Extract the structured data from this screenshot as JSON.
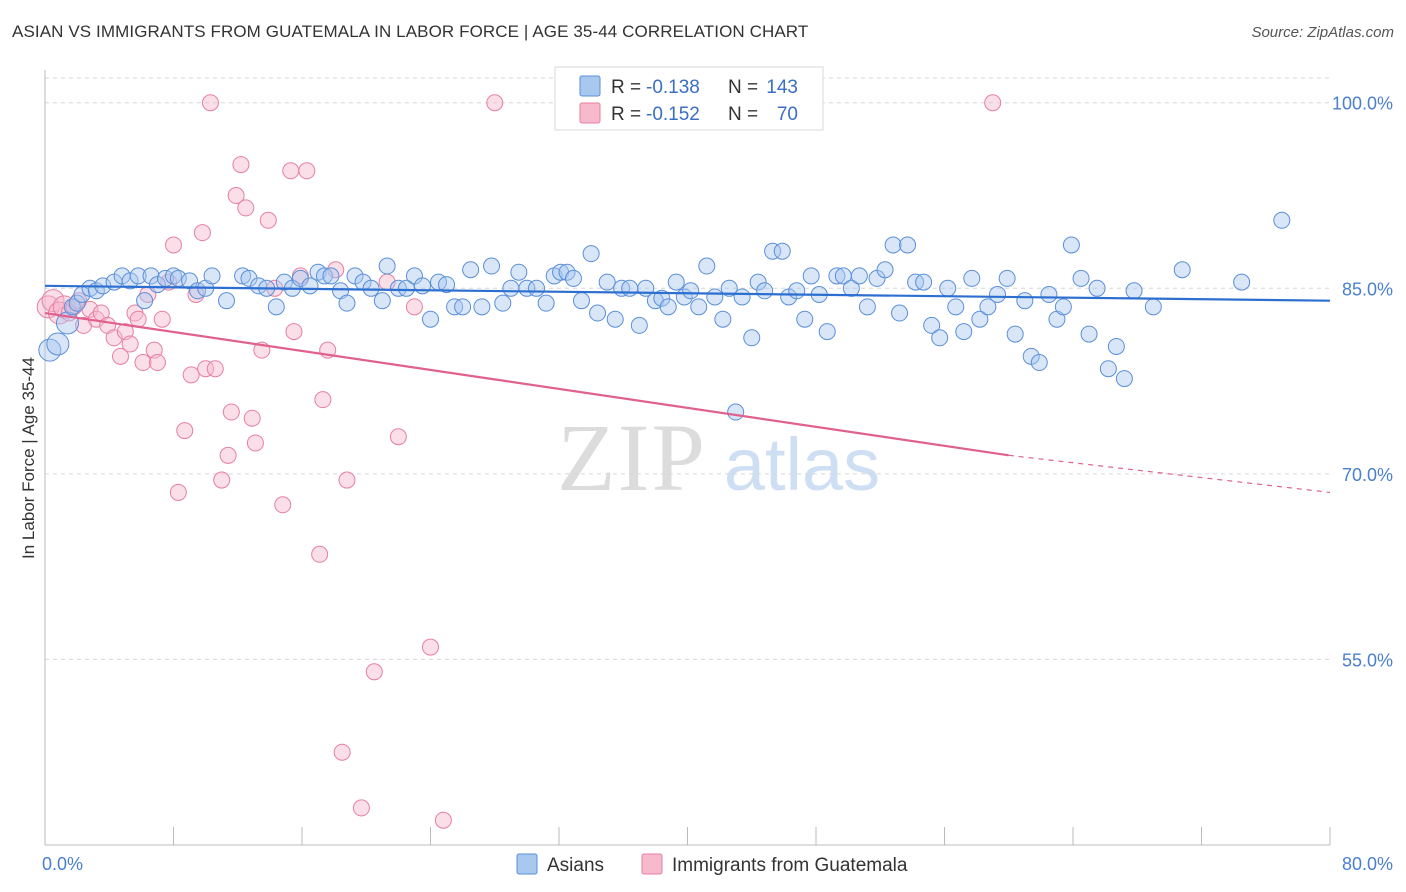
{
  "title": "ASIAN VS IMMIGRANTS FROM GUATEMALA IN LABOR FORCE | AGE 35-44 CORRELATION CHART",
  "source": "Source: ZipAtlas.com",
  "watermark": {
    "zip": "ZIP",
    "atlas": "atlas"
  },
  "legend_top": [
    {
      "r_label": "R =",
      "r_value": "-0.138",
      "n_label": "N =",
      "n_value": "143",
      "color": "#a9c8f0",
      "stroke": "#5b8fd8"
    },
    {
      "r_label": "R =",
      "r_value": "-0.152",
      "n_label": "N =",
      "n_value": "70",
      "color": "#f7b9cc",
      "stroke": "#e77fa2"
    }
  ],
  "legend_bottom": [
    {
      "label": "Asians",
      "color": "#a9c8f0",
      "stroke": "#5b8fd8"
    },
    {
      "label": "Immigrants from Guatemala",
      "color": "#f7b9cc",
      "stroke": "#e77fa2"
    }
  ],
  "chart_data": {
    "type": "scatter",
    "title": "ASIAN VS IMMIGRANTS FROM GUATEMALA IN LABOR FORCE | AGE 35-44 CORRELATION CHART",
    "xlabel": "",
    "ylabel": "In Labor Force | Age 35-44",
    "xlim": [
      0,
      80
    ],
    "ylim": [
      40,
      102
    ],
    "x_tick_labels": [
      "0.0%",
      "80.0%"
    ],
    "y_ticks": [
      55,
      70,
      85,
      100
    ],
    "y_tick_labels": [
      "55.0%",
      "70.0%",
      "85.0%",
      "100.0%"
    ],
    "series": [
      {
        "name": "Asians",
        "color": "#a9c8f0",
        "stroke": "#5b8fd8",
        "line_color": "#2d6fd0",
        "trend": {
          "x": [
            0,
            80
          ],
          "y": [
            85.2,
            84.0
          ]
        },
        "points": [
          [
            0.3,
            80.0
          ],
          [
            0.8,
            80.5
          ],
          [
            1.4,
            82.2
          ],
          [
            1.7,
            83.5
          ],
          [
            2.0,
            83.8
          ],
          [
            2.3,
            84.5
          ],
          [
            2.8,
            85.0
          ],
          [
            3.2,
            84.8
          ],
          [
            3.6,
            85.2
          ],
          [
            4.3,
            85.5
          ],
          [
            4.8,
            86.0
          ],
          [
            5.3,
            85.6
          ],
          [
            5.8,
            86.0
          ],
          [
            6.2,
            84.0
          ],
          [
            6.6,
            86.0
          ],
          [
            7.0,
            85.3
          ],
          [
            7.5,
            85.8
          ],
          [
            8.0,
            86.0
          ],
          [
            8.3,
            85.8
          ],
          [
            9.0,
            85.6
          ],
          [
            9.5,
            84.8
          ],
          [
            10.0,
            85.0
          ],
          [
            10.4,
            86.0
          ],
          [
            11.3,
            84.0
          ],
          [
            12.3,
            86.0
          ],
          [
            12.7,
            85.8
          ],
          [
            13.3,
            85.2
          ],
          [
            13.8,
            85.0
          ],
          [
            14.4,
            83.5
          ],
          [
            14.9,
            85.5
          ],
          [
            15.4,
            85.0
          ],
          [
            15.9,
            85.8
          ],
          [
            16.5,
            85.2
          ],
          [
            17.0,
            86.3
          ],
          [
            17.4,
            86.0
          ],
          [
            17.8,
            86.0
          ],
          [
            18.4,
            84.8
          ],
          [
            18.8,
            83.8
          ],
          [
            19.3,
            86.0
          ],
          [
            19.8,
            85.5
          ],
          [
            20.3,
            85.0
          ],
          [
            21.0,
            84.0
          ],
          [
            21.3,
            86.8
          ],
          [
            22.0,
            85.0
          ],
          [
            22.5,
            85.0
          ],
          [
            23.0,
            86.0
          ],
          [
            23.5,
            85.2
          ],
          [
            24.0,
            82.5
          ],
          [
            24.5,
            85.5
          ],
          [
            25.0,
            85.3
          ],
          [
            25.5,
            83.5
          ],
          [
            26.0,
            83.5
          ],
          [
            26.5,
            86.5
          ],
          [
            27.2,
            83.5
          ],
          [
            27.8,
            86.8
          ],
          [
            28.5,
            83.8
          ],
          [
            29.0,
            85.0
          ],
          [
            29.5,
            86.3
          ],
          [
            30.0,
            85.0
          ],
          [
            30.6,
            85.0
          ],
          [
            31.2,
            83.8
          ],
          [
            31.7,
            86.0
          ],
          [
            32.1,
            86.3
          ],
          [
            32.5,
            86.3
          ],
          [
            32.9,
            85.8
          ],
          [
            33.4,
            84.0
          ],
          [
            34.0,
            87.8
          ],
          [
            34.4,
            83.0
          ],
          [
            35.0,
            85.5
          ],
          [
            35.5,
            82.5
          ],
          [
            35.9,
            85.0
          ],
          [
            36.4,
            85.0
          ],
          [
            37.0,
            82.0
          ],
          [
            37.4,
            85.0
          ],
          [
            38.0,
            84.0
          ],
          [
            38.4,
            84.2
          ],
          [
            38.8,
            83.5
          ],
          [
            39.3,
            85.5
          ],
          [
            39.8,
            84.3
          ],
          [
            40.2,
            84.8
          ],
          [
            40.7,
            83.5
          ],
          [
            41.2,
            86.8
          ],
          [
            41.7,
            84.3
          ],
          [
            42.2,
            82.5
          ],
          [
            42.6,
            85.0
          ],
          [
            43.0,
            75.0
          ],
          [
            43.4,
            84.3
          ],
          [
            44.0,
            81.0
          ],
          [
            44.4,
            85.5
          ],
          [
            44.8,
            84.8
          ],
          [
            45.3,
            88.0
          ],
          [
            45.9,
            88.0
          ],
          [
            46.3,
            84.3
          ],
          [
            46.8,
            84.8
          ],
          [
            47.3,
            82.5
          ],
          [
            47.7,
            86.0
          ],
          [
            48.2,
            84.5
          ],
          [
            48.7,
            81.5
          ],
          [
            49.3,
            86.0
          ],
          [
            49.7,
            86.0
          ],
          [
            50.2,
            85.0
          ],
          [
            50.7,
            86.0
          ],
          [
            51.2,
            83.5
          ],
          [
            51.8,
            85.8
          ],
          [
            52.3,
            86.5
          ],
          [
            52.8,
            88.5
          ],
          [
            53.2,
            83.0
          ],
          [
            53.7,
            88.5
          ],
          [
            54.2,
            85.5
          ],
          [
            54.7,
            85.5
          ],
          [
            55.2,
            82.0
          ],
          [
            55.7,
            81.0
          ],
          [
            56.2,
            85.0
          ],
          [
            56.7,
            83.5
          ],
          [
            57.2,
            81.5
          ],
          [
            57.7,
            85.8
          ],
          [
            58.2,
            82.5
          ],
          [
            58.7,
            83.5
          ],
          [
            59.3,
            84.5
          ],
          [
            59.9,
            85.8
          ],
          [
            60.4,
            81.3
          ],
          [
            61.0,
            84.0
          ],
          [
            61.4,
            79.5
          ],
          [
            61.9,
            79.0
          ],
          [
            62.5,
            84.5
          ],
          [
            63.0,
            82.5
          ],
          [
            63.4,
            83.5
          ],
          [
            63.9,
            88.5
          ],
          [
            64.5,
            85.8
          ],
          [
            65.0,
            81.3
          ],
          [
            65.5,
            85.0
          ],
          [
            66.2,
            78.5
          ],
          [
            66.7,
            80.3
          ],
          [
            67.2,
            77.7
          ],
          [
            67.8,
            84.8
          ],
          [
            69.0,
            83.5
          ],
          [
            70.8,
            86.5
          ],
          [
            74.5,
            85.5
          ],
          [
            77.0,
            90.5
          ]
        ]
      },
      {
        "name": "Immigrants from Guatemala",
        "color": "#f7b9cc",
        "stroke": "#e77fa2",
        "line_color": "#e0608e",
        "trend": {
          "x": [
            0,
            60
          ],
          "y": [
            83.0,
            71.5
          ]
        },
        "trend_dashed": {
          "x": [
            60,
            80
          ],
          "y": [
            71.5,
            68.5
          ]
        },
        "points": [
          [
            0.2,
            83.5
          ],
          [
            0.5,
            84.0
          ],
          [
            0.9,
            83.0
          ],
          [
            1.2,
            83.5
          ],
          [
            1.5,
            83.0
          ],
          [
            1.8,
            83.5
          ],
          [
            2.1,
            84.0
          ],
          [
            2.4,
            82.0
          ],
          [
            2.8,
            83.3
          ],
          [
            3.2,
            82.5
          ],
          [
            3.5,
            83.0
          ],
          [
            3.9,
            82.0
          ],
          [
            4.3,
            81.0
          ],
          [
            4.7,
            79.5
          ],
          [
            5.0,
            81.5
          ],
          [
            5.3,
            80.5
          ],
          [
            5.6,
            83.0
          ],
          [
            5.8,
            82.5
          ],
          [
            6.1,
            79.0
          ],
          [
            6.4,
            84.5
          ],
          [
            6.8,
            80.0
          ],
          [
            7.0,
            79.0
          ],
          [
            7.3,
            82.5
          ],
          [
            7.7,
            85.5
          ],
          [
            8.0,
            88.5
          ],
          [
            8.3,
            68.5
          ],
          [
            8.7,
            73.5
          ],
          [
            9.1,
            78.0
          ],
          [
            9.4,
            84.5
          ],
          [
            9.8,
            89.5
          ],
          [
            10.0,
            78.5
          ],
          [
            10.3,
            100.0
          ],
          [
            10.6,
            78.5
          ],
          [
            11.0,
            69.5
          ],
          [
            11.4,
            71.5
          ],
          [
            11.6,
            75.0
          ],
          [
            11.9,
            92.5
          ],
          [
            12.2,
            95.0
          ],
          [
            12.5,
            91.5
          ],
          [
            12.9,
            74.5
          ],
          [
            13.1,
            72.5
          ],
          [
            13.5,
            80.0
          ],
          [
            13.9,
            90.5
          ],
          [
            14.3,
            85.0
          ],
          [
            14.8,
            67.5
          ],
          [
            15.3,
            94.5
          ],
          [
            15.5,
            81.5
          ],
          [
            15.9,
            86.0
          ],
          [
            16.3,
            94.5
          ],
          [
            17.1,
            63.5
          ],
          [
            17.3,
            76.0
          ],
          [
            17.6,
            80.0
          ],
          [
            18.1,
            86.5
          ],
          [
            18.5,
            47.5
          ],
          [
            18.8,
            69.5
          ],
          [
            19.7,
            43.0
          ],
          [
            20.5,
            54.0
          ],
          [
            21.3,
            85.5
          ],
          [
            22.0,
            73.0
          ],
          [
            23.0,
            83.5
          ],
          [
            24.0,
            56.0
          ],
          [
            24.8,
            42.0
          ],
          [
            28.0,
            100.0
          ],
          [
            59.0,
            100.0
          ]
        ]
      }
    ]
  }
}
